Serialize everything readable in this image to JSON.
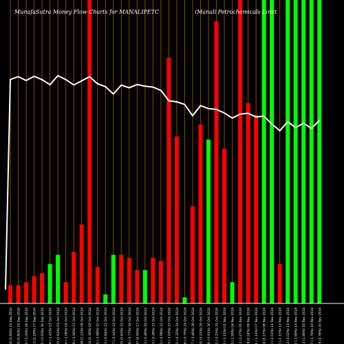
{
  "chart_data": {
    "type": "bar",
    "title": "MunafaSutra Money Flow Charts for MANALIPETC",
    "subtitle": "(Manali Petrochemicals Limit",
    "xlabel": "",
    "ylabel": "",
    "colors": {
      "background": "#000000",
      "up": "#00ff00",
      "down": "#ff0000",
      "grid": "#8a4b00",
      "line": "#ffffff",
      "axis": "#ffffff"
    },
    "categories": [
      "65.85 (2.78%) 20 Nov 2024",
      "64.07 (-1.76%) 19 Nov 2024",
      "65.22 (1.56%) 18 Nov 2024",
      "64.22 (-1.99%) 14 Nov 2024",
      "65.52 (3.02%) 13 Nov 2024",
      "63.60 (-2.15%) 12 Nov 2024",
      "65.00 (-2.53%) 11 Nov 2024",
      "66.69 (0.27%) 08 Nov 2024",
      "66.51 (-1.14%) 07 Nov 2024",
      "67.28 (0.24%) 06 Nov 2024",
      "67.12 (1.27%) 05 Nov 2024",
      "66.28 (-1.59%) 04 Nov 2024",
      "67.35 (-1.11%) 01 Nov 2024",
      "68.11 (-0.25%) 31 Oct 2024",
      "68.28 (-0.91%) 30 Oct 2024",
      "68.91 (3.21%) 29 Oct 2024",
      "66.77 (-3.46%) 28 Oct 2024",
      "69.16 (-0.79%) 25 Oct 2024",
      "69.71 (-0.32%) 24 Oct 2024",
      "69.93 (-3.04%) 23 Oct 2024",
      "72.12 (-0.98%) 22 Oct 2024",
      "72.83 (-0.28%) 21 Oct 2024",
      "73.03 (-0.46%) 18 Oct 2024",
      "73.37 (0.95%) 17 Oct 2024",
      "72.68 (-0.77%) 16 Oct 2024",
      "73.25 (2.63%) 15 Oct 2024",
      "71.37 (-2.14%) 14 Oct 2024",
      "72.93 (-0.84%) 11 Oct 2024",
      "73.55 (-1.98%) 10 Oct 2024",
      "75.04 (1.18%) 09 Oct 2024",
      "74.16 (1.21%) 08 Oct 2024",
      "73.28 (-1.56%) 07 Oct 2024",
      "74.44 (-1.08%) 04 Oct 2024",
      "75.25 (2.61%) 03 Oct 2024",
      "73.34 (-1.42%) 01 Oct 2024",
      "74.40 (-0.93%) 30 Sep 2024",
      "75.10 (1.18%) 27 Sep 2024",
      "74.23 (-1.09%) 26 Sep 2024",
      "75.05 (0.82%) 25 Sep 2024",
      "74.44 (1.84%) 24 Sep 2024"
    ],
    "direction": [
      "up",
      "up",
      "up",
      "up",
      "up",
      "down",
      "up",
      "up",
      "down",
      "down",
      "down",
      "up",
      "down",
      "down",
      "up",
      "down",
      "down",
      "up",
      "down",
      "down",
      "down",
      "down",
      "up",
      "down",
      "down",
      "down",
      "up",
      "up",
      "down",
      "down",
      "down",
      "down",
      "down",
      "up",
      "up",
      "down",
      "down",
      "down",
      "down",
      "down"
    ],
    "values": [
      100,
      100,
      100,
      100,
      100,
      13,
      100,
      100,
      62,
      66,
      100,
      7,
      51,
      93,
      54,
      59,
      32,
      2,
      55,
      81,
      14,
      15,
      11,
      11,
      15,
      16,
      16,
      3,
      12,
      100,
      26,
      17,
      7,
      16,
      13,
      10,
      9,
      7,
      6,
      6
    ],
    "ylim": [
      0,
      100
    ]
  }
}
